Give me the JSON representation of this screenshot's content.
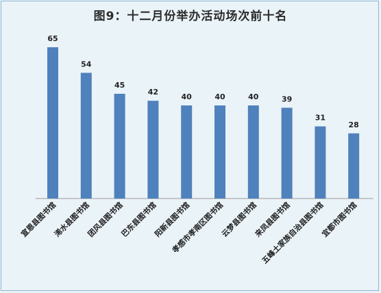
{
  "chart_data": {
    "type": "bar",
    "title": "图9：十二月份举办活动场次前十名",
    "categories": [
      "宣恩县图书馆",
      "浠水县图书馆",
      "团风县图书馆",
      "巴东县图书馆",
      "阳新县图书馆",
      "孝感市孝南区图书馆",
      "云梦县图书馆",
      "来凤县图书馆",
      "五峰土家族自治县图书馆",
      "宜都市图书馆"
    ],
    "values": [
      65,
      54,
      45,
      42,
      40,
      40,
      40,
      39,
      31,
      28
    ],
    "ylim": [
      0,
      65
    ],
    "grid": false,
    "legend": "none",
    "bar_color": "#4f81bd"
  }
}
